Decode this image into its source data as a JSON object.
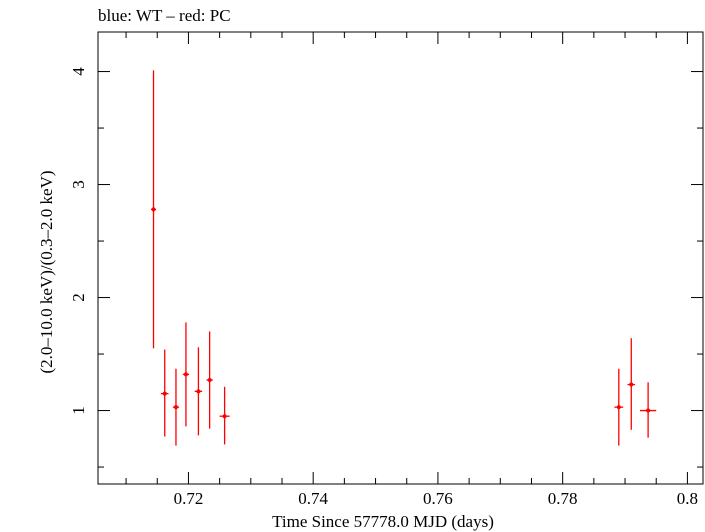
{
  "chart_data": {
    "type": "scatter",
    "title": "blue: WT – red: PC",
    "xlabel": "Time Since 57778.0 MJD (days)",
    "ylabel": "(2.0–10.0 keV)/(0.3–2.0 keV)",
    "xlim": [
      0.7055,
      0.8025
    ],
    "ylim": [
      0.35,
      4.35
    ],
    "x_ticks": [
      0.72,
      0.74,
      0.76,
      0.78,
      0.8
    ],
    "x_tick_labels": [
      "0.72",
      "0.74",
      "0.76",
      "0.78",
      "0.8"
    ],
    "y_ticks": [
      1,
      2,
      3,
      4
    ],
    "y_tick_labels": [
      "1",
      "2",
      "3",
      "4"
    ],
    "grid": false,
    "series": [
      {
        "color": "#ff0000",
        "points": [
          {
            "x": 0.7144,
            "xerr": 0.0004,
            "y": 2.78,
            "ylo": 1.55,
            "yhi": 4.01
          },
          {
            "x": 0.7162,
            "xerr": 0.0006,
            "y": 1.15,
            "ylo": 0.77,
            "yhi": 1.54
          },
          {
            "x": 0.718,
            "xerr": 0.0005,
            "y": 1.03,
            "ylo": 0.69,
            "yhi": 1.37
          },
          {
            "x": 0.7196,
            "xerr": 0.0005,
            "y": 1.32,
            "ylo": 0.86,
            "yhi": 1.78
          },
          {
            "x": 0.7216,
            "xerr": 0.0006,
            "y": 1.17,
            "ylo": 0.78,
            "yhi": 1.56
          },
          {
            "x": 0.7234,
            "xerr": 0.0005,
            "y": 1.27,
            "ylo": 0.84,
            "yhi": 1.7
          },
          {
            "x": 0.7258,
            "xerr": 0.0008,
            "y": 0.95,
            "ylo": 0.7,
            "yhi": 1.21
          },
          {
            "x": 0.789,
            "xerr": 0.0007,
            "y": 1.03,
            "ylo": 0.69,
            "yhi": 1.37
          },
          {
            "x": 0.791,
            "xerr": 0.0006,
            "y": 1.23,
            "ylo": 0.83,
            "yhi": 1.64
          },
          {
            "x": 0.7937,
            "xerr": 0.0013,
            "y": 1.0,
            "ylo": 0.76,
            "yhi": 1.25
          }
        ]
      }
    ]
  }
}
